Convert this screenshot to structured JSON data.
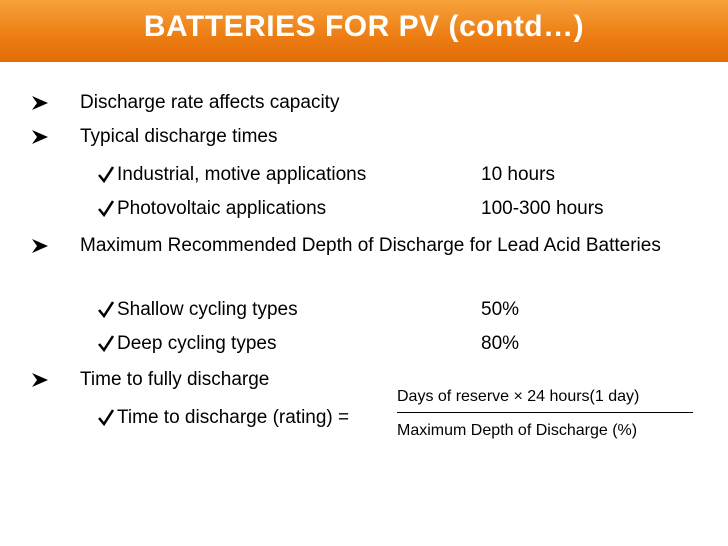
{
  "title": "BATTERIES FOR PV (contd…)",
  "bullets": [
    {
      "text": "Discharge rate affects capacity"
    },
    {
      "text": "Typical discharge times",
      "items": [
        {
          "label": "Industrial, motive applications",
          "value": "10 hours"
        },
        {
          "label": "Photovoltaic applications",
          "value": "100-300 hours"
        }
      ]
    },
    {
      "text": "Maximum Recommended Depth of Discharge for Lead Acid Batteries",
      "items": [
        {
          "label": "Shallow cycling types",
          "value": "50%"
        },
        {
          "label": "Deep cycling types",
          "value": "80%"
        }
      ]
    },
    {
      "text": "Time to fully discharge",
      "formula": {
        "label": "Time to discharge (rating) =",
        "numerator": "Days of reserve × 24 hours(1 day)",
        "denominator": "Maximum Depth of Discharge (%)"
      }
    }
  ]
}
